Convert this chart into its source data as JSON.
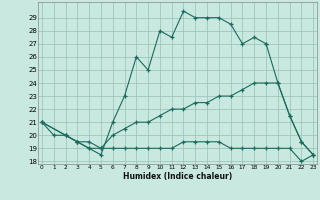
{
  "xlabel": "Humidex (Indice chaleur)",
  "bg_color": "#c8e8e0",
  "line_color": "#1a6b5a",
  "grid_color": "#9abfb8",
  "curves": [
    {
      "x": [
        0,
        1,
        2,
        3,
        4,
        5,
        6,
        7,
        8,
        9,
        10,
        11,
        12,
        13,
        14,
        15,
        16,
        17,
        18,
        19
      ],
      "y": [
        21,
        20,
        20,
        19.5,
        19,
        18.5,
        21,
        23,
        26,
        25,
        28,
        27.5,
        29.5,
        29,
        29,
        29,
        28.5,
        27,
        27.5,
        27
      ]
    },
    {
      "x": [
        19,
        20,
        21,
        22,
        23
      ],
      "y": [
        27,
        24,
        21.5,
        19.5,
        18.5
      ]
    },
    {
      "x": [
        0,
        2,
        3,
        4,
        5,
        6,
        7,
        8,
        9,
        10,
        11,
        12,
        13,
        14,
        15,
        16,
        17,
        18,
        19,
        20,
        21,
        22,
        23
      ],
      "y": [
        21,
        20,
        19.5,
        19.5,
        19,
        20,
        20.5,
        21,
        21,
        21.5,
        22,
        22,
        22.5,
        22.5,
        23,
        23,
        23.5,
        24,
        24,
        24,
        21.5,
        19.5,
        18.5
      ]
    },
    {
      "x": [
        0,
        2,
        3,
        4,
        5,
        6,
        7,
        8,
        9,
        10,
        11,
        12,
        13,
        14,
        15,
        16,
        17,
        18,
        19,
        20,
        21,
        22,
        23
      ],
      "y": [
        21,
        20,
        19.5,
        19,
        19,
        19,
        19,
        19,
        19,
        19,
        19,
        19.5,
        19.5,
        19.5,
        19.5,
        19,
        19,
        19,
        19,
        19,
        19,
        18,
        18.5
      ]
    }
  ],
  "xlim": [
    0,
    23
  ],
  "ylim": [
    17.8,
    30.2
  ],
  "ytick_vals": [
    18,
    19,
    20,
    21,
    22,
    23,
    24,
    25,
    26,
    27,
    28,
    29
  ],
  "xtick_vals": [
    0,
    1,
    2,
    3,
    4,
    5,
    6,
    7,
    8,
    9,
    10,
    11,
    12,
    13,
    14,
    15,
    16,
    17,
    18,
    19,
    20,
    21,
    22,
    23
  ]
}
